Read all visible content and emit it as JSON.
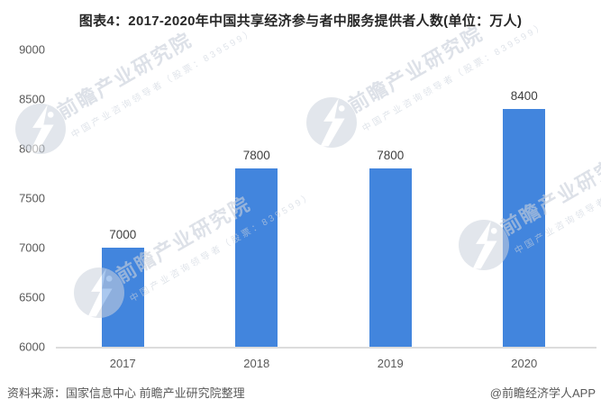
{
  "title": "图表4：2017-2020年中国共享经济参与者中服务提供者人数(单位：万人)",
  "chart_data": {
    "type": "bar",
    "title": "图表4：2017-2020年中国共享经济参与者中服务提供者人数(单位：万人)",
    "unit": "万人",
    "categories": [
      "2017",
      "2018",
      "2019",
      "2020"
    ],
    "values": [
      7000,
      7800,
      7800,
      8400
    ],
    "value_labels": [
      "7000",
      "7800",
      "7800",
      "8400"
    ],
    "ylim": [
      6000,
      9000
    ],
    "yticks": [
      9000,
      8500,
      8000,
      7500,
      7000,
      6500,
      6000
    ],
    "grid": false,
    "legend_position": "none",
    "bar_color": "#4285DD",
    "axis_line_color": "#DCDCDC",
    "axis_label_color": "#595959",
    "value_label_color": "#404040"
  },
  "footer": {
    "source": "资料来源：国家信息中心 前瞻产业研究院整理",
    "credit": "@前瞻经济学人APP"
  },
  "watermark": {
    "brand": "前瞻产业研究院",
    "tagline": "中国产业咨询领导者（股票：839599）",
    "color": "#C9D0DB"
  }
}
